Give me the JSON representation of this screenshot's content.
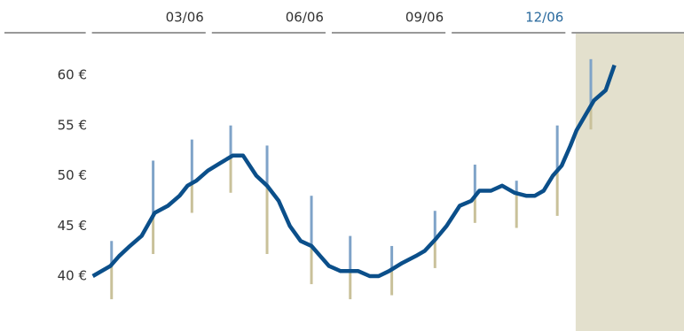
{
  "chart_data": {
    "type": "line",
    "x": [
      0.11,
      0.55,
      0.77,
      1.04,
      1.33,
      1.66,
      1.99,
      2.28,
      2.48,
      2.7,
      2.99,
      3.32,
      3.61,
      3.87,
      4.2,
      4.47,
      4.76,
      5.04,
      5.31,
      5.58,
      5.8,
      6.02,
      6.31,
      6.75,
      7.04,
      7.26,
      7.52,
      7.85,
      8.19,
      8.41,
      8.69,
      8.96,
      9.29,
      9.58,
      9.78,
      10.07,
      10.35,
      10.66,
      10.95,
      11.17,
      11.39,
      11.62,
      11.84,
      12.06,
      12.21,
      12.43,
      12.65,
      12.94,
      13.16
    ],
    "series": [
      {
        "color": "#0b4f8a",
        "values": [
          40,
          41,
          42,
          43,
          44,
          46.3,
          47,
          48,
          49,
          49.5,
          50.5,
          51.3,
          52,
          52,
          50,
          49,
          47.5,
          45,
          43.5,
          43,
          42,
          41,
          40.5,
          40.5,
          40,
          40,
          40.5,
          41.3,
          42,
          42.5,
          43.7,
          45,
          47,
          47.5,
          48.5,
          48.5,
          49,
          48.3,
          48,
          48,
          48.5,
          50,
          51,
          53,
          54.5,
          56,
          57.5,
          58.5,
          61
        ]
      }
    ],
    "ranges": {
      "x": [
        0.58,
        1.62,
        2.59,
        3.56,
        4.47,
        5.58,
        6.55,
        7.59,
        8.67,
        9.67,
        10.71,
        11.73,
        12.57
      ],
      "high": [
        43.5,
        51.5,
        53.6,
        55,
        53,
        48,
        44,
        43,
        46.5,
        51.1,
        49.5,
        55,
        61.6
      ],
      "low": [
        37.7,
        42.2,
        46.3,
        48.3,
        42.2,
        39.2,
        37.7,
        38.1,
        40.8,
        45.3,
        44.8,
        46,
        54.6
      ],
      "high_color": "#7fa3c8",
      "low_color": "#c9c19a"
    },
    "highlight_xlim": [
      12.19,
      14.9
    ],
    "highlight_color": "#e3e0cd",
    "xlim": [
      -2.1,
      14.9
    ],
    "xticks": [
      {
        "value": 3,
        "label": "03/06"
      },
      {
        "value": 6,
        "label": "06/06"
      },
      {
        "value": 9,
        "label": "09/06"
      },
      {
        "value": 12,
        "label": "12/06"
      }
    ],
    "xtick_colors": [
      "#333333",
      "#333333",
      "#333333",
      "#2a6a9e"
    ],
    "ylim": [
      35,
      65
    ],
    "yticks": [
      {
        "value": 40,
        "label": "40 €"
      },
      {
        "value": 45,
        "label": "45 €"
      },
      {
        "value": 50,
        "label": "50 €"
      },
      {
        "value": 55,
        "label": "55 €"
      },
      {
        "value": 60,
        "label": "60 €"
      }
    ]
  }
}
